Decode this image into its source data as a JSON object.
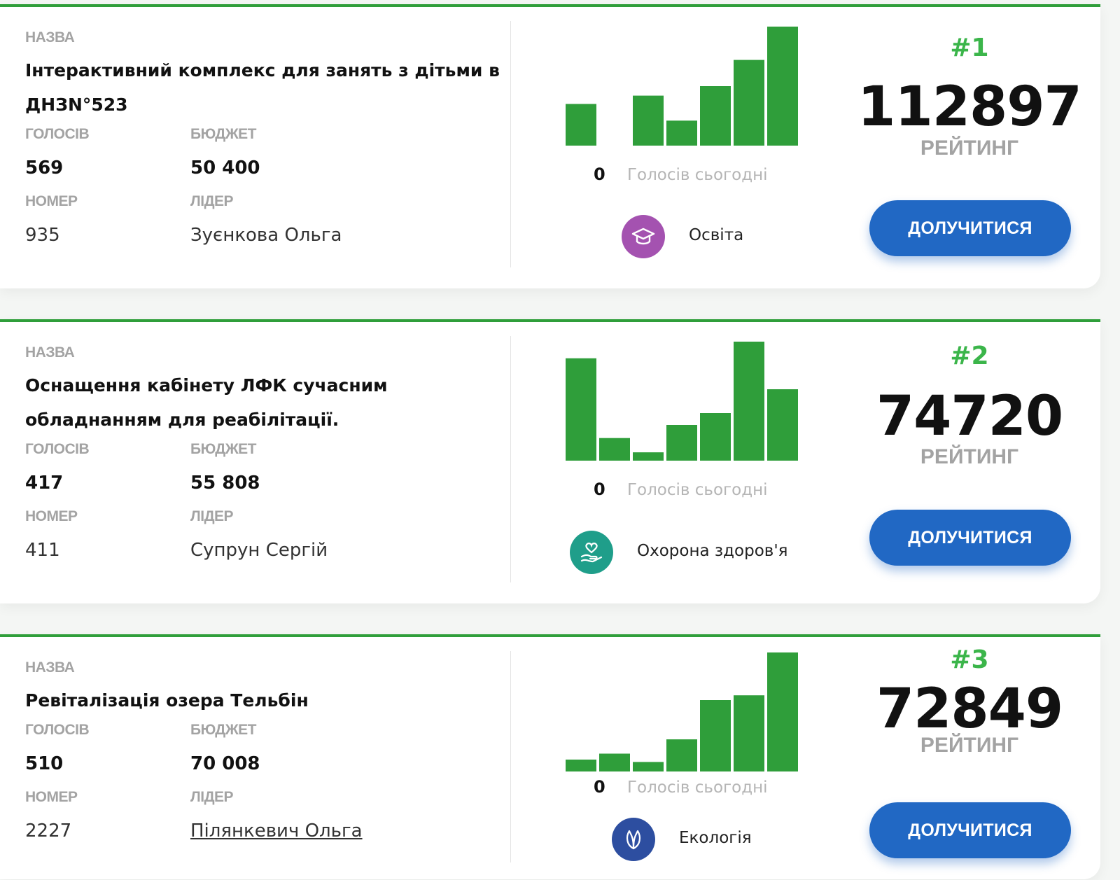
{
  "labels": {
    "name": "НАЗВА",
    "votes": "ГОЛОСІВ",
    "budget": "БЮДЖЕТ",
    "number": "НОМЕР",
    "leader": "ЛІДЕР",
    "votes_today": "Голосів сьогодні",
    "rating": "РЕЙТИНГ",
    "join": "ДОЛУЧИТИСЯ"
  },
  "colors": {
    "accent_green": "#2f9e3a",
    "rank_green": "#3bb54a",
    "button_blue": "#2168c4",
    "education": "#a452b0",
    "health": "#1f9e8a",
    "ecology": "#2d4ea0"
  },
  "projects": [
    {
      "title": "Інтерактивний комплекс для занять з дітьми в ДНЗN°523",
      "votes": "569",
      "budget": "50 400",
      "number": "935",
      "leader": "Зуєнкова Ольга",
      "votes_today": "0",
      "category": "Освіта",
      "category_icon": "graduation-cap-icon",
      "rank": "#1",
      "rating": "112897"
    },
    {
      "title": "Оснащення кабінету ЛФК сучасним обладнанням для реабілітації.",
      "votes": "417",
      "budget": "55 808",
      "number": "411",
      "leader": "Супрун Сергій",
      "votes_today": "0",
      "category": "Охорона здоров'я",
      "category_icon": "heart-in-hand-icon",
      "rank": "#2",
      "rating": "74720"
    },
    {
      "title": "Ревіталізація озера Тельбін",
      "votes": "510",
      "budget": "70 008",
      "number": "2227",
      "leader": "Пілянкевич Ольга",
      "votes_today": "0",
      "category": "Екологія",
      "category_icon": "leaf-icon",
      "rank": "#3",
      "rating": "72849"
    }
  ],
  "chart_data": [
    {
      "type": "bar",
      "values": [
        35,
        0,
        42,
        21,
        50,
        72,
        100
      ]
    },
    {
      "type": "bar",
      "values": [
        86,
        19,
        7,
        30,
        40,
        100,
        60
      ]
    },
    {
      "type": "bar",
      "values": [
        10,
        15,
        8,
        27,
        60,
        64,
        100
      ]
    }
  ]
}
